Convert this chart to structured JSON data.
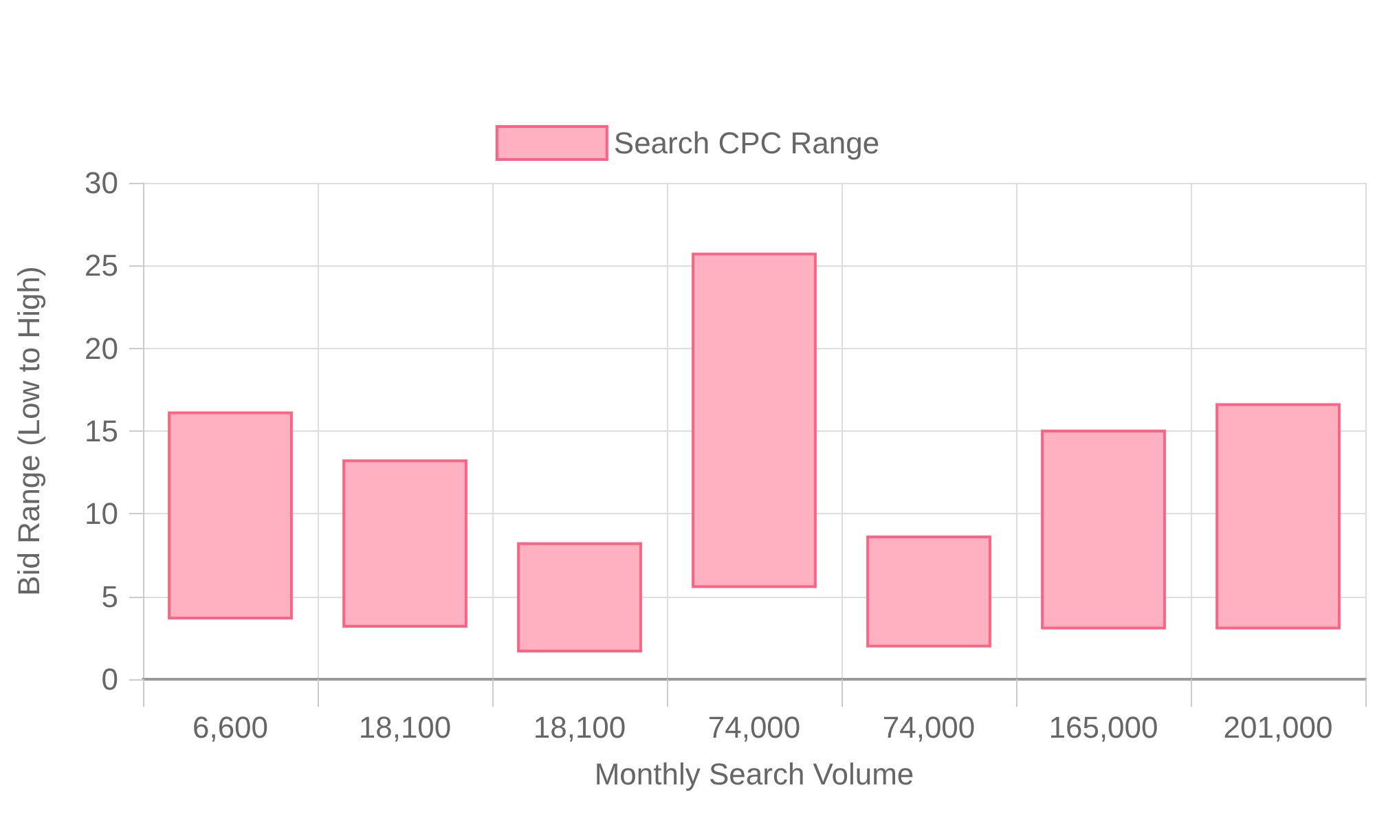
{
  "chart_data": {
    "type": "bar",
    "xlabel": "Monthly Search Volume",
    "ylabel": "Bid Range (Low to High)",
    "categories": [
      "6,600",
      "18,100",
      "18,100",
      "74,000",
      "74,000",
      "165,000",
      "201,000"
    ],
    "series": [
      {
        "name": "Search CPC Range",
        "color": "#ffb1c1",
        "base": [
          3.7,
          3.2,
          1.7,
          5.6,
          2.0,
          3.1,
          3.1
        ],
        "values": [
          12.4,
          10.0,
          6.5,
          20.1,
          6.6,
          11.9,
          13.5
        ]
      }
    ],
    "ylim": [
      0,
      30
    ],
    "yticks": [
      0,
      5,
      10,
      15,
      20,
      25,
      30
    ],
    "grid": true,
    "legend": "top"
  }
}
